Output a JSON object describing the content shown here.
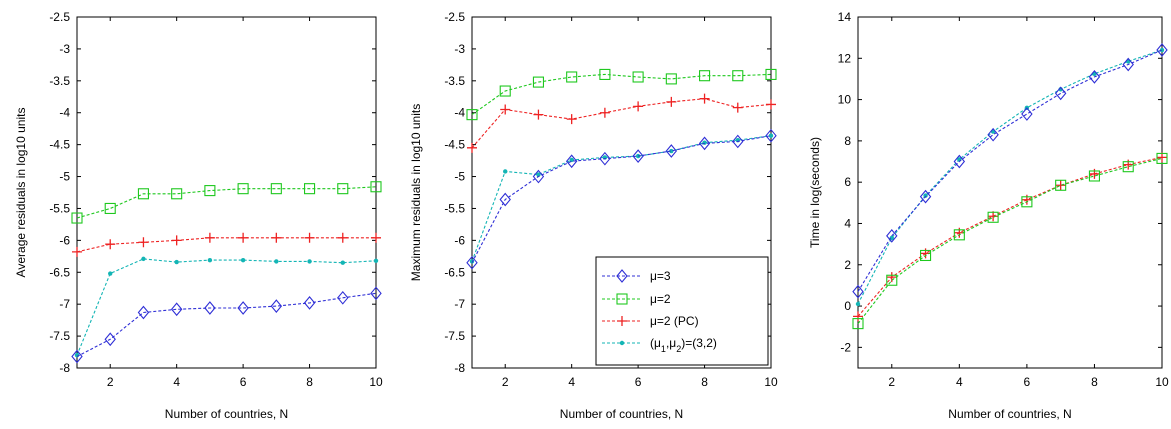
{
  "colors": {
    "mu3": "#2f2fd6",
    "mu2": "#1ec81e",
    "mu2pc": "#ee2222",
    "mu12": "#13b5b5"
  },
  "legend": {
    "placement": "bottom-right of second chart",
    "entries": [
      {
        "key": "mu3",
        "label": "μ=3",
        "marker": "diamond"
      },
      {
        "key": "mu2",
        "label": "μ=2",
        "marker": "square"
      },
      {
        "key": "mu2pc",
        "label": "μ=2 (PC)",
        "marker": "plus"
      },
      {
        "key": "mu12",
        "label": "(μ1,μ2)=(3,2)",
        "marker": "dot"
      }
    ]
  },
  "chart_data": [
    {
      "type": "line",
      "xlabel": "Number of countries, N",
      "ylabel": "Average residuals in log10 units",
      "xlim": [
        1,
        10
      ],
      "ylim": [
        -8,
        -2.5
      ],
      "xticks": [
        2,
        4,
        6,
        8,
        10
      ],
      "xtick_labels": [
        "2",
        "4",
        "6",
        "8",
        "10"
      ],
      "yticks": [
        -8,
        -7.5,
        -7,
        -6.5,
        -6,
        -5.5,
        -5,
        -4.5,
        -4,
        -3.5,
        -3,
        -2.5
      ],
      "ytick_labels": [
        "-8",
        "-7.5",
        "-7",
        "-6.5",
        "-6",
        "-5.5",
        "-5",
        "-4.5",
        "-4",
        "-3.5",
        "-3",
        "-2.5"
      ],
      "x": [
        1,
        2,
        3,
        4,
        5,
        6,
        7,
        8,
        9,
        10
      ],
      "series": [
        {
          "key": "mu3",
          "values": [
            -7.82,
            -7.55,
            -7.13,
            -7.08,
            -7.06,
            -7.06,
            -7.03,
            -6.98,
            -6.9,
            -6.83
          ]
        },
        {
          "key": "mu2",
          "values": [
            -5.65,
            -5.5,
            -5.27,
            -5.27,
            -5.22,
            -5.19,
            -5.19,
            -5.19,
            -5.19,
            -5.16
          ]
        },
        {
          "key": "mu2pc",
          "values": [
            -6.18,
            -6.06,
            -6.03,
            -6.0,
            -5.96,
            -5.96,
            -5.96,
            -5.96,
            -5.96,
            -5.96
          ]
        },
        {
          "key": "mu12",
          "values": [
            -7.8,
            -6.52,
            -6.29,
            -6.34,
            -6.31,
            -6.31,
            -6.33,
            -6.33,
            -6.35,
            -6.32
          ]
        }
      ]
    },
    {
      "type": "line",
      "xlabel": "Number of countries, N",
      "ylabel": "Maximum residuals in log10 units",
      "xlim": [
        1,
        10
      ],
      "ylim": [
        -8,
        -2.5
      ],
      "xticks": [
        2,
        4,
        6,
        8,
        10
      ],
      "xtick_labels": [
        "2",
        "4",
        "6",
        "8",
        "10"
      ],
      "yticks": [
        -8,
        -7.5,
        -7,
        -6.5,
        -6,
        -5.5,
        -5,
        -4.5,
        -4,
        -3.5,
        -3,
        -2.5
      ],
      "ytick_labels": [
        "-8",
        "-7.5",
        "-7",
        "-6.5",
        "-6",
        "-5.5",
        "-5",
        "-4.5",
        "-4",
        "-3.5",
        "-3",
        "-2.5"
      ],
      "x": [
        1,
        2,
        3,
        4,
        5,
        6,
        7,
        8,
        9,
        10
      ],
      "series": [
        {
          "key": "mu3",
          "values": [
            -6.35,
            -5.36,
            -5.0,
            -4.76,
            -4.72,
            -4.68,
            -4.6,
            -4.48,
            -4.45,
            -4.36
          ]
        },
        {
          "key": "mu2",
          "values": [
            -4.03,
            -3.66,
            -3.52,
            -3.44,
            -3.4,
            -3.44,
            -3.47,
            -3.42,
            -3.42,
            -3.4
          ]
        },
        {
          "key": "mu2pc",
          "values": [
            -4.55,
            -3.95,
            -4.03,
            -4.1,
            -4.0,
            -3.9,
            -3.83,
            -3.78,
            -3.92,
            -3.87
          ]
        },
        {
          "key": "mu12",
          "values": [
            -6.33,
            -4.92,
            -4.97,
            -4.74,
            -4.7,
            -4.68,
            -4.6,
            -4.47,
            -4.43,
            -4.36
          ]
        }
      ]
    },
    {
      "type": "line",
      "xlabel": "Number of countries, N",
      "ylabel": "Time in log(seconds)",
      "xlim": [
        1,
        10
      ],
      "ylim": [
        -3,
        14
      ],
      "xticks": [
        2,
        4,
        6,
        8,
        10
      ],
      "xtick_labels": [
        "2",
        "4",
        "6",
        "8",
        "10"
      ],
      "yticks": [
        -2,
        0,
        2,
        4,
        6,
        8,
        10,
        12,
        14
      ],
      "ytick_labels": [
        "-2",
        "0",
        "2",
        "4",
        "6",
        "8",
        "10",
        "12",
        "14"
      ],
      "x": [
        1,
        2,
        3,
        4,
        5,
        6,
        7,
        8,
        9,
        10
      ],
      "series": [
        {
          "key": "mu3",
          "values": [
            0.7,
            3.4,
            5.3,
            7.0,
            8.3,
            9.3,
            10.3,
            11.1,
            11.7,
            12.4
          ]
        },
        {
          "key": "mu2",
          "values": [
            -0.85,
            1.25,
            2.45,
            3.45,
            4.3,
            5.05,
            5.85,
            6.3,
            6.75,
            7.15
          ]
        },
        {
          "key": "mu2pc",
          "values": [
            -0.5,
            1.4,
            2.55,
            3.55,
            4.35,
            5.15,
            5.85,
            6.4,
            6.85,
            7.2
          ]
        },
        {
          "key": "mu12",
          "values": [
            0.1,
            3.3,
            5.35,
            7.1,
            8.45,
            9.6,
            10.5,
            11.25,
            11.85,
            12.4
          ]
        }
      ]
    }
  ]
}
